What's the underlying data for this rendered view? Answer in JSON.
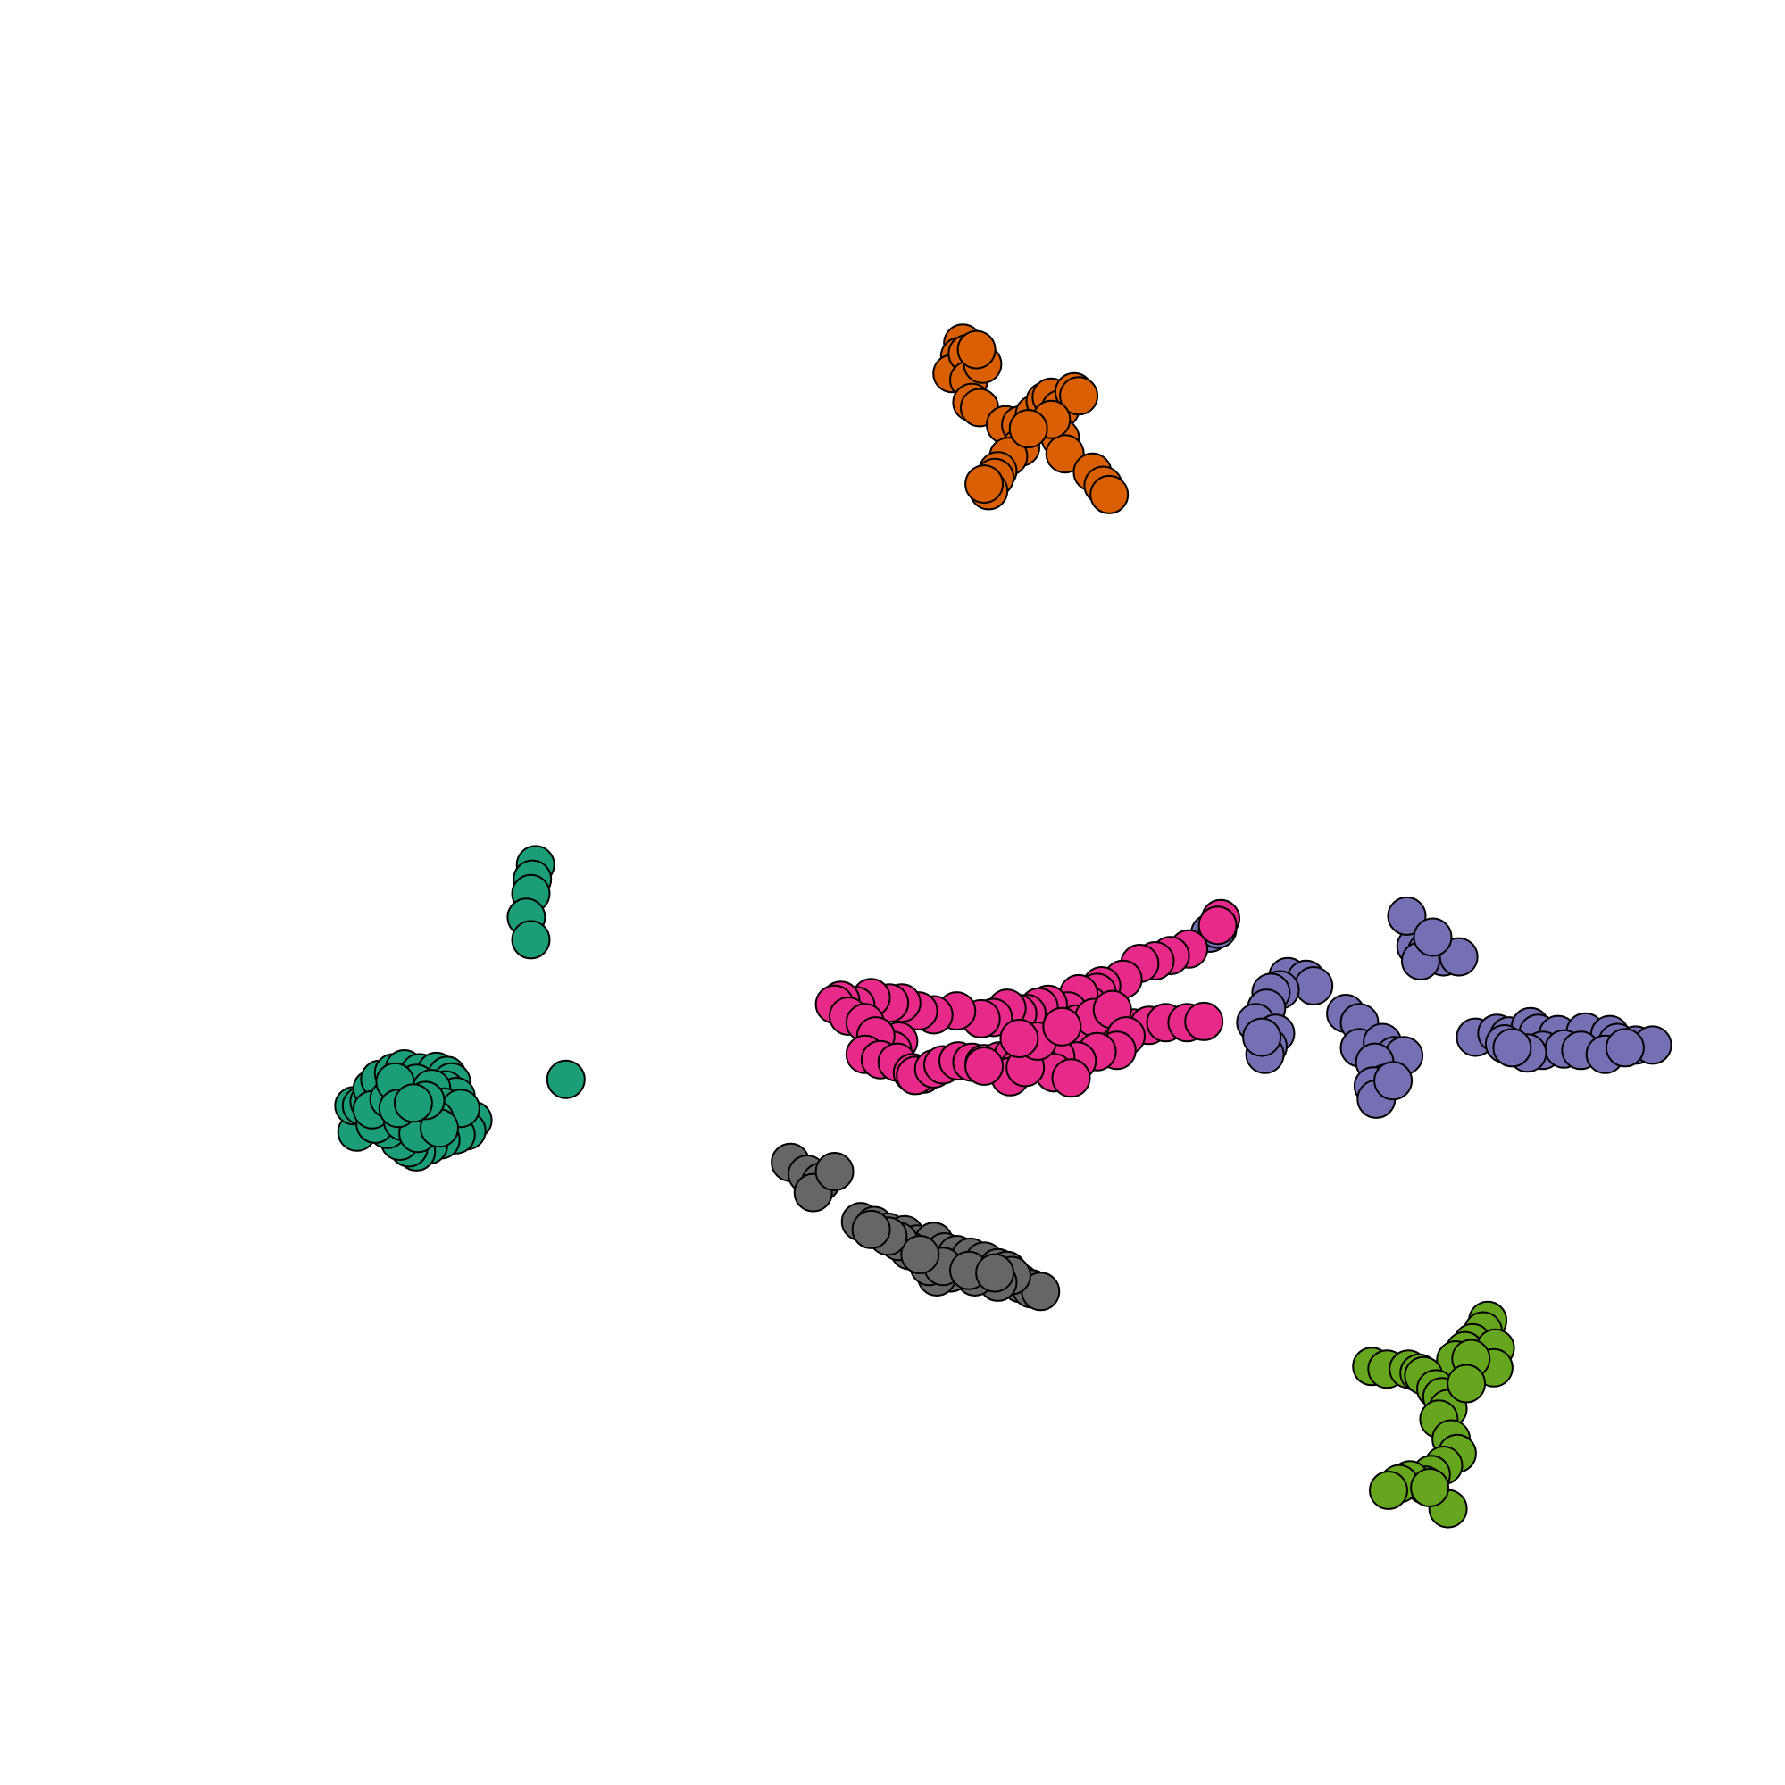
{
  "chart_data": {
    "type": "scatter",
    "title": "",
    "xlabel": "",
    "ylabel": "",
    "xlim": [
      0,
      100
    ],
    "ylim": [
      0,
      100
    ],
    "grid": false,
    "legend": "none",
    "series": [
      {
        "color": "#1b9e77",
        "points": [
          [
            22.8,
            49.4
          ],
          [
            22.6,
            48.3
          ],
          [
            22.5,
            47.2
          ],
          [
            22.2,
            45.4
          ],
          [
            22.5,
            43.7
          ],
          [
            24.8,
            33.1
          ],
          [
            11.1,
            29.1
          ],
          [
            10.9,
            31.1
          ],
          [
            11.4,
            31.1
          ],
          [
            11.9,
            31.4
          ],
          [
            12.6,
            32.0
          ],
          [
            12.1,
            32.4
          ],
          [
            12.6,
            33.1
          ],
          [
            13.5,
            33.6
          ],
          [
            14.2,
            33.9
          ],
          [
            15.2,
            33.6
          ],
          [
            16.3,
            33.7
          ],
          [
            17.0,
            33.4
          ],
          [
            17.3,
            32.9
          ],
          [
            16.9,
            32.3
          ],
          [
            17.6,
            31.8
          ],
          [
            18.0,
            30.5
          ],
          [
            18.7,
            30.0
          ],
          [
            18.3,
            29.2
          ],
          [
            17.6,
            28.9
          ],
          [
            16.6,
            28.5
          ],
          [
            15.8,
            28.1
          ],
          [
            15.0,
            27.6
          ],
          [
            14.5,
            27.9
          ],
          [
            13.9,
            28.4
          ],
          [
            13.1,
            29.3
          ],
          [
            12.3,
            29.7
          ],
          [
            12.1,
            30.8
          ],
          [
            13.2,
            31.6
          ],
          [
            14.2,
            31.7
          ],
          [
            15.0,
            32.8
          ],
          [
            16.0,
            32.4
          ],
          [
            16.8,
            31.0
          ],
          [
            17.9,
            30.9
          ],
          [
            16.2,
            30.1
          ],
          [
            15.3,
            30.0
          ],
          [
            14.4,
            30.6
          ],
          [
            13.6,
            32.9
          ],
          [
            14.1,
            29.9
          ],
          [
            15.1,
            29.0
          ],
          [
            16.5,
            29.4
          ],
          [
            13.8,
            30.9
          ],
          [
            15.6,
            31.5
          ],
          [
            14.8,
            31.3
          ]
        ]
      },
      {
        "color": "#d95f02",
        "points": [
          [
            50.8,
            89.0
          ],
          [
            50.6,
            88.0
          ],
          [
            50.1,
            86.7
          ],
          [
            51.1,
            88.2
          ],
          [
            51.2,
            86.2
          ],
          [
            51.4,
            84.5
          ],
          [
            51.9,
            84.1
          ],
          [
            53.6,
            82.8
          ],
          [
            54.6,
            82.8
          ],
          [
            55.5,
            83.6
          ],
          [
            56.2,
            84.6
          ],
          [
            56.6,
            84.9
          ],
          [
            57.2,
            84.0
          ],
          [
            58.1,
            85.3
          ],
          [
            58.4,
            85.0
          ],
          [
            57.2,
            81.8
          ],
          [
            57.5,
            80.6
          ],
          [
            59.3,
            79.2
          ],
          [
            60.0,
            78.2
          ],
          [
            60.4,
            77.5
          ],
          [
            54.6,
            81.1
          ],
          [
            53.8,
            80.4
          ],
          [
            53.1,
            79.3
          ],
          [
            52.9,
            78.8
          ],
          [
            52.5,
            77.8
          ],
          [
            52.2,
            78.3
          ],
          [
            56.6,
            83.2
          ],
          [
            55.1,
            82.5
          ],
          [
            52.1,
            87.4
          ],
          [
            51.7,
            88.5
          ]
        ]
      },
      {
        "color": "#7570b3",
        "points": [
          [
            67.0,
            44.2
          ],
          [
            67.5,
            44.5
          ],
          [
            72.1,
            40.9
          ],
          [
            73.3,
            40.7
          ],
          [
            73.8,
            40.2
          ],
          [
            71.6,
            39.9
          ],
          [
            71.0,
            39.7
          ],
          [
            70.7,
            38.5
          ],
          [
            70.0,
            37.4
          ],
          [
            71.3,
            36.6
          ],
          [
            70.8,
            35.6
          ],
          [
            70.6,
            35.0
          ],
          [
            70.4,
            36.3
          ],
          [
            75.9,
            38.1
          ],
          [
            76.8,
            37.4
          ],
          [
            76.8,
            35.5
          ],
          [
            78.3,
            35.9
          ],
          [
            79.1,
            34.9
          ],
          [
            79.7,
            34.9
          ],
          [
            77.8,
            34.4
          ],
          [
            78.5,
            32.8
          ],
          [
            77.7,
            32.6
          ],
          [
            77.9,
            31.6
          ],
          [
            79.0,
            33.0
          ],
          [
            84.4,
            36.3
          ],
          [
            85.8,
            36.6
          ],
          [
            86.6,
            36.4
          ],
          [
            88.0,
            37.1
          ],
          [
            88.5,
            36.6
          ],
          [
            89.8,
            36.5
          ],
          [
            91.6,
            36.7
          ],
          [
            93.2,
            36.5
          ],
          [
            93.7,
            35.9
          ],
          [
            94.9,
            35.7
          ],
          [
            96.0,
            35.7
          ],
          [
            88.8,
            35.3
          ],
          [
            90.2,
            35.4
          ],
          [
            91.3,
            35.3
          ],
          [
            92.9,
            35.0
          ],
          [
            94.2,
            35.5
          ],
          [
            86.3,
            35.8
          ],
          [
            87.8,
            35.1
          ],
          [
            86.8,
            35.5
          ],
          [
            80.5,
            43.2
          ],
          [
            81.2,
            42.8
          ],
          [
            82.3,
            42.4
          ],
          [
            83.3,
            42.4
          ],
          [
            80.8,
            42.1
          ],
          [
            79.9,
            45.5
          ],
          [
            81.6,
            43.9
          ]
        ]
      },
      {
        "color": "#e7298a",
        "points": [
          [
            67.7,
            45.3
          ],
          [
            67.5,
            44.8
          ],
          [
            65.6,
            43.0
          ],
          [
            64.4,
            42.5
          ],
          [
            63.4,
            42.1
          ],
          [
            62.4,
            41.9
          ],
          [
            61.3,
            40.7
          ],
          [
            59.9,
            40.2
          ],
          [
            59.6,
            39.7
          ],
          [
            59.1,
            38.7
          ],
          [
            58.4,
            39.6
          ],
          [
            57.7,
            38.3
          ],
          [
            56.4,
            38.8
          ],
          [
            55.8,
            38.6
          ],
          [
            55.0,
            38.1
          ],
          [
            54.4,
            38.1
          ],
          [
            53.7,
            38.5
          ],
          [
            52.8,
            37.8
          ],
          [
            52.0,
            37.7
          ],
          [
            50.4,
            38.3
          ],
          [
            48.9,
            38.0
          ],
          [
            47.9,
            38.3
          ],
          [
            46.8,
            38.9
          ],
          [
            46.0,
            38.9
          ],
          [
            44.8,
            39.3
          ],
          [
            43.8,
            38.7
          ],
          [
            42.8,
            39.1
          ],
          [
            42.4,
            38.8
          ],
          [
            43.3,
            37.9
          ],
          [
            44.4,
            37.4
          ],
          [
            46.6,
            36.0
          ],
          [
            46.2,
            35.3
          ],
          [
            45.1,
            36.4
          ],
          [
            44.4,
            35.0
          ],
          [
            45.4,
            34.6
          ],
          [
            46.5,
            34.4
          ],
          [
            47.5,
            33.6
          ],
          [
            48.2,
            33.5
          ],
          [
            47.7,
            33.4
          ],
          [
            48.9,
            33.9
          ],
          [
            49.5,
            34.2
          ],
          [
            50.5,
            34.5
          ],
          [
            51.4,
            34.4
          ],
          [
            52.2,
            34.3
          ],
          [
            53.2,
            34.5
          ],
          [
            54.1,
            34.9
          ],
          [
            55.0,
            35.1
          ],
          [
            56.1,
            35.4
          ],
          [
            57.4,
            35.8
          ],
          [
            58.8,
            36.1
          ],
          [
            60.1,
            36.6
          ],
          [
            61.1,
            37.0
          ],
          [
            62.0,
            37.0
          ],
          [
            63.0,
            37.2
          ],
          [
            64.1,
            37.4
          ],
          [
            65.5,
            37.4
          ],
          [
            66.6,
            37.5
          ],
          [
            58.3,
            37.3
          ],
          [
            59.4,
            37.8
          ],
          [
            60.6,
            38.4
          ],
          [
            61.5,
            36.4
          ],
          [
            60.9,
            35.3
          ],
          [
            59.6,
            35.2
          ],
          [
            58.3,
            34.5
          ],
          [
            56.9,
            34.8
          ],
          [
            55.6,
            35.1
          ],
          [
            54.5,
            34.0
          ],
          [
            53.9,
            33.3
          ],
          [
            56.8,
            33.6
          ],
          [
            57.9,
            33.2
          ],
          [
            54.9,
            34.0
          ],
          [
            55.7,
            36.0
          ],
          [
            57.3,
            37.1
          ],
          [
            52.2,
            34.1
          ],
          [
            54.5,
            36.2
          ]
        ]
      },
      {
        "color": "#666666",
        "points": [
          [
            39.5,
            26.8
          ],
          [
            40.6,
            25.9
          ],
          [
            41.5,
            25.3
          ],
          [
            41.0,
            24.5
          ],
          [
            42.4,
            26.1
          ],
          [
            44.1,
            22.3
          ],
          [
            45.0,
            22.0
          ],
          [
            45.9,
            21.5
          ],
          [
            47.0,
            21.3
          ],
          [
            47.8,
            20.6
          ],
          [
            48.9,
            20.8
          ],
          [
            49.6,
            20.0
          ],
          [
            50.4,
            19.8
          ],
          [
            51.3,
            19.6
          ],
          [
            52.2,
            19.3
          ],
          [
            53.1,
            18.8
          ],
          [
            53.7,
            18.6
          ],
          [
            54.6,
            17.6
          ],
          [
            55.3,
            17.2
          ],
          [
            55.9,
            17.0
          ],
          [
            54.0,
            18.2
          ],
          [
            53.1,
            17.7
          ],
          [
            51.6,
            18.1
          ],
          [
            50.0,
            18.4
          ],
          [
            49.1,
            18.1
          ],
          [
            48.6,
            18.9
          ],
          [
            47.3,
            20.1
          ],
          [
            46.6,
            20.8
          ],
          [
            49.5,
            18.9
          ],
          [
            51.2,
            18.6
          ],
          [
            52.9,
            18.4
          ],
          [
            48.0,
            19.8
          ],
          [
            45.9,
            21.2
          ],
          [
            44.8,
            21.7
          ]
        ]
      },
      {
        "color": "#66a61e",
        "points": [
          [
            85.2,
            14.8
          ],
          [
            84.9,
            14.0
          ],
          [
            84.2,
            13.1
          ],
          [
            83.7,
            12.5
          ],
          [
            83.1,
            11.8
          ],
          [
            84.3,
            11.6
          ],
          [
            85.3,
            11.9
          ],
          [
            85.7,
            12.7
          ],
          [
            85.6,
            11.2
          ],
          [
            84.1,
            11.9
          ],
          [
            77.6,
            11.3
          ],
          [
            78.6,
            11.1
          ],
          [
            80.0,
            11.1
          ],
          [
            80.7,
            10.8
          ],
          [
            81.0,
            10.6
          ],
          [
            81.8,
            9.6
          ],
          [
            82.2,
            9.0
          ],
          [
            82.6,
            8.1
          ],
          [
            82.0,
            7.3
          ],
          [
            82.8,
            5.8
          ],
          [
            83.2,
            4.7
          ],
          [
            82.3,
            3.8
          ],
          [
            81.5,
            3.1
          ],
          [
            81.1,
            2.3
          ],
          [
            80.1,
            2.7
          ],
          [
            79.4,
            2.4
          ],
          [
            78.7,
            1.9
          ],
          [
            82.6,
            0.5
          ],
          [
            81.4,
            2.1
          ],
          [
            83.8,
            10.0
          ]
        ]
      }
    ]
  }
}
